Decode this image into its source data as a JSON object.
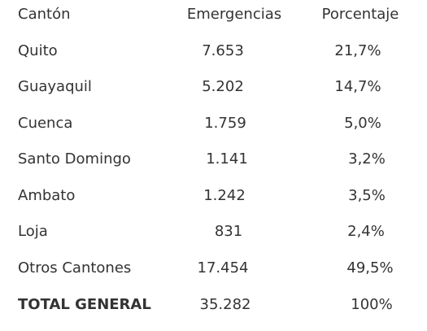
{
  "header": {
    "canton": "Cantón",
    "emergencias": "Emergencias",
    "porcentaje": "Porcentaje"
  },
  "rows": [
    {
      "canton": "Quito",
      "emergencias": "7.653",
      "porcentaje": "21,7%"
    },
    {
      "canton": "Guayaquil",
      "emergencias": "5.202",
      "porcentaje": "14,7%"
    },
    {
      "canton": "Cuenca",
      "emergencias": "1.759",
      "porcentaje": "5,0%"
    },
    {
      "canton": "Santo Domingo",
      "emergencias": "1.141",
      "porcentaje": "3,2%"
    },
    {
      "canton": "Ambato",
      "emergencias": "1.242",
      "porcentaje": "3,5%"
    },
    {
      "canton": "Loja",
      "emergencias": "831",
      "porcentaje": "2,4%"
    },
    {
      "canton": "Otros Cantones",
      "emergencias": "17.454",
      "porcentaje": "49,5%"
    }
  ],
  "total": {
    "canton": "TOTAL GENERAL",
    "emergencias": "35.282",
    "porcentaje": "100%"
  }
}
